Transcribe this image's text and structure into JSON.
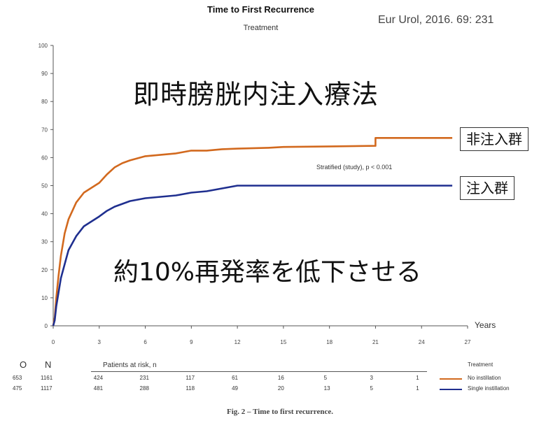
{
  "header": {
    "title": "Time to First Recurrence",
    "subtitle": "Treatment",
    "citation": "Eur Urol, 2016. 69: 231"
  },
  "overlay": {
    "jp_title": "即時膀胱内注入療法",
    "jp_annotation": "約10%再発率を低下させる",
    "stat_note": "Stratified (study), p < 0.001"
  },
  "chart_data": {
    "type": "line",
    "title": "Time to First Recurrence",
    "subtitle": "Treatment",
    "xlabel": "Years",
    "ylabel": "",
    "xlim": [
      0,
      27
    ],
    "ylim": [
      0,
      100
    ],
    "xticks": [
      0,
      3,
      6,
      9,
      12,
      15,
      18,
      21,
      24,
      27
    ],
    "yticks": [
      0,
      10,
      20,
      30,
      40,
      50,
      60,
      70,
      80,
      90,
      100
    ],
    "grid": false,
    "series": [
      {
        "name": "No instillation",
        "label": "非注入群",
        "color": "#d2691e",
        "points": [
          [
            0,
            0
          ],
          [
            0.1,
            3
          ],
          [
            0.2,
            10
          ],
          [
            0.35,
            18
          ],
          [
            0.5,
            25
          ],
          [
            0.75,
            33
          ],
          [
            1,
            38
          ],
          [
            1.5,
            44
          ],
          [
            2,
            47.5
          ],
          [
            3,
            51
          ],
          [
            3.5,
            54
          ],
          [
            4,
            56.5
          ],
          [
            4.5,
            58
          ],
          [
            5,
            59
          ],
          [
            6,
            60.5
          ],
          [
            7,
            61
          ],
          [
            8,
            61.5
          ],
          [
            9,
            62.5
          ],
          [
            10,
            62.5
          ],
          [
            11,
            63
          ],
          [
            12,
            63.2
          ],
          [
            14,
            63.5
          ],
          [
            15,
            63.8
          ],
          [
            18,
            64
          ],
          [
            21,
            64.2
          ],
          [
            21,
            67
          ],
          [
            24,
            67
          ],
          [
            26,
            67
          ]
        ]
      },
      {
        "name": "Single instillation",
        "label": "注入群",
        "color": "#1f2f8f",
        "points": [
          [
            0,
            0
          ],
          [
            0.1,
            2
          ],
          [
            0.2,
            7
          ],
          [
            0.35,
            12
          ],
          [
            0.5,
            17
          ],
          [
            0.75,
            22
          ],
          [
            1,
            27
          ],
          [
            1.5,
            32
          ],
          [
            2,
            35.5
          ],
          [
            3,
            39
          ],
          [
            3.5,
            41
          ],
          [
            4,
            42.5
          ],
          [
            4.5,
            43.5
          ],
          [
            5,
            44.5
          ],
          [
            6,
            45.5
          ],
          [
            7,
            46
          ],
          [
            8,
            46.5
          ],
          [
            9,
            47.5
          ],
          [
            10,
            48
          ],
          [
            11,
            49
          ],
          [
            12,
            50
          ],
          [
            14,
            50
          ],
          [
            15,
            50
          ],
          [
            18,
            50
          ],
          [
            21,
            50
          ],
          [
            24,
            50
          ],
          [
            26,
            50
          ]
        ]
      }
    ],
    "risk_table": {
      "header_o": "O",
      "header_n": "N",
      "header_patients": "Patients at risk, n",
      "header_treatment": "Treatment",
      "rows": [
        {
          "o": "653",
          "n": "1161",
          "counts": [
            "424",
            "231",
            "117",
            "61",
            "16",
            "5",
            "3",
            "1"
          ],
          "treatment": "No instillation",
          "color": "#d2691e"
        },
        {
          "o": "475",
          "n": "1117",
          "counts": [
            "481",
            "288",
            "118",
            "49",
            "20",
            "13",
            "5",
            "1"
          ],
          "treatment": "Single instillation",
          "color": "#1f2f8f"
        }
      ]
    }
  },
  "caption": "Fig. 2 – Time to first recurrence."
}
